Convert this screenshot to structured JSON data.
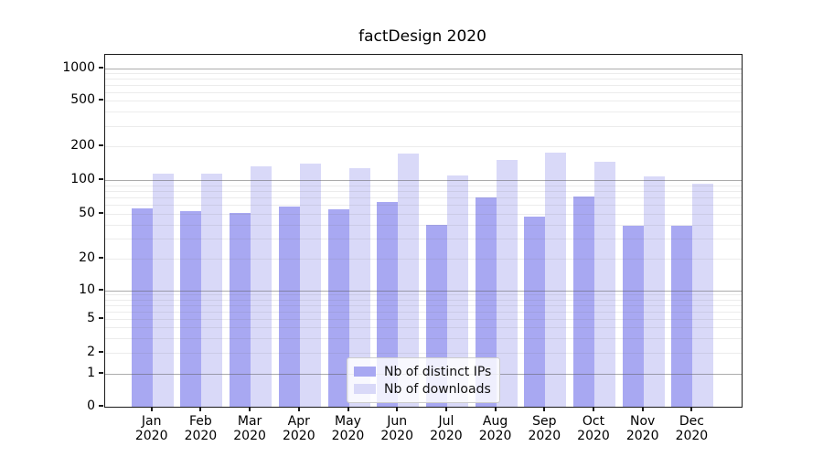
{
  "chart_data": {
    "type": "bar",
    "title": "factDesign 2020",
    "categories": [
      "Jan 2020",
      "Feb 2020",
      "Mar 2020",
      "Apr 2020",
      "May 2020",
      "Jun 2020",
      "Jul 2020",
      "Aug 2020",
      "Sep 2020",
      "Oct 2020",
      "Nov 2020",
      "Dec 2020"
    ],
    "series": [
      {
        "name": "Nb of distinct IPs",
        "color": "#a8a8f2",
        "values": [
          56,
          53,
          51,
          58,
          55,
          64,
          40,
          70,
          47,
          72,
          39,
          39
        ]
      },
      {
        "name": "Nb of downloads",
        "color": "#d9d9f8",
        "values": [
          114,
          114,
          132,
          140,
          128,
          172,
          110,
          152,
          175,
          146,
          108,
          93
        ]
      }
    ],
    "y_axis": {
      "scale": "symlog",
      "ticks": [
        0,
        1,
        2,
        5,
        10,
        20,
        50,
        100,
        200,
        500,
        1000
      ],
      "range": [
        0,
        1400
      ]
    },
    "x_axis": {
      "label": "",
      "tick_label_year": "2020"
    },
    "grid": "on",
    "legend_position": "lower center"
  }
}
